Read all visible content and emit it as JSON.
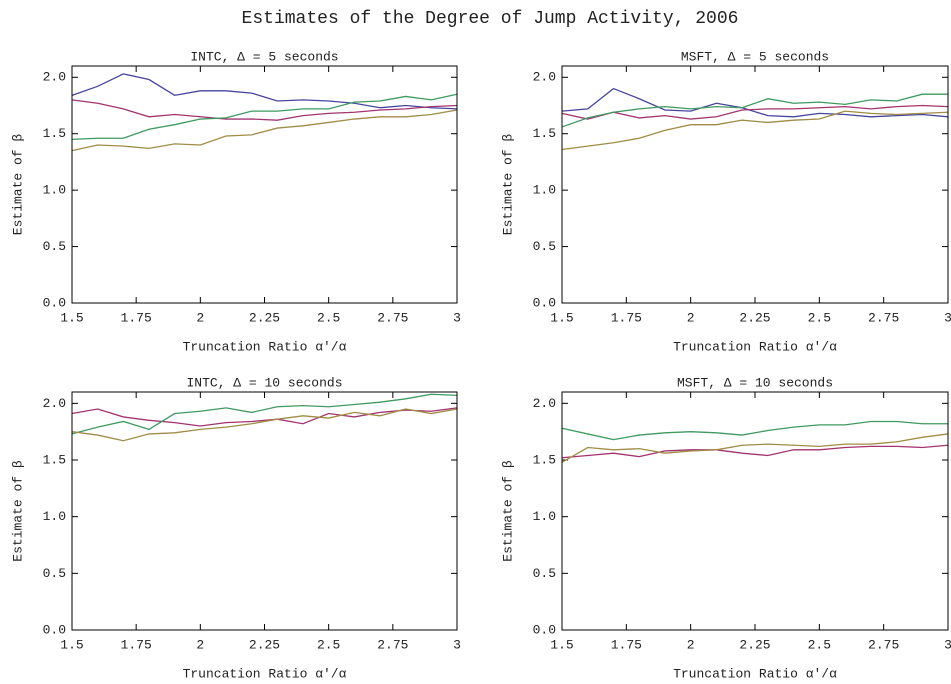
{
  "title": "Estimates of the Degree of Jump Activity, 2006",
  "chart_data": [
    {
      "type": "line",
      "title": "INTC, Δ = 5 seconds",
      "xlabel": "Truncation Ratio α'/α",
      "ylabel": "Estimate of β",
      "x": [
        1.5,
        1.6,
        1.7,
        1.8,
        1.9,
        2.0,
        2.1,
        2.2,
        2.3,
        2.4,
        2.5,
        2.6,
        2.7,
        2.8,
        2.9,
        3.0
      ],
      "xlim": [
        1.5,
        3
      ],
      "xticks": [
        1.5,
        1.75,
        2,
        2.25,
        2.5,
        2.75,
        3
      ],
      "ylim": [
        0,
        2.1
      ],
      "yticks": [
        {
          "value": 0,
          "label": "0.0"
        },
        0.5,
        {
          "value": 1,
          "label": "1.0"
        },
        1.5,
        {
          "value": 2,
          "label": "2.0"
        }
      ],
      "series": [
        {
          "color": "#45459e",
          "values": [
            1.84,
            1.92,
            2.03,
            1.98,
            1.84,
            1.88,
            1.88,
            1.86,
            1.79,
            1.8,
            1.79,
            1.77,
            1.73,
            1.75,
            1.73,
            1.72
          ]
        },
        {
          "color": "#a3336f",
          "values": [
            1.8,
            1.77,
            1.72,
            1.65,
            1.67,
            1.65,
            1.63,
            1.63,
            1.62,
            1.66,
            1.68,
            1.69,
            1.71,
            1.72,
            1.74,
            1.75
          ]
        },
        {
          "color": "#3f9a5f",
          "values": [
            1.45,
            1.46,
            1.46,
            1.54,
            1.58,
            1.63,
            1.64,
            1.7,
            1.7,
            1.72,
            1.72,
            1.78,
            1.79,
            1.83,
            1.8,
            1.85
          ]
        },
        {
          "color": "#a08c45",
          "values": [
            1.35,
            1.4,
            1.39,
            1.37,
            1.41,
            1.4,
            1.48,
            1.49,
            1.55,
            1.57,
            1.6,
            1.63,
            1.65,
            1.65,
            1.67,
            1.71
          ]
        }
      ]
    },
    {
      "type": "line",
      "title": "MSFT, Δ = 5 seconds",
      "xlabel": "Truncation Ratio α'/α",
      "ylabel": "Estimate of β",
      "x": [
        1.5,
        1.6,
        1.7,
        1.8,
        1.9,
        2.0,
        2.1,
        2.2,
        2.3,
        2.4,
        2.5,
        2.6,
        2.7,
        2.8,
        2.9,
        3.0
      ],
      "xlim": [
        1.5,
        3
      ],
      "xticks": [
        1.5,
        1.75,
        2,
        2.25,
        2.5,
        2.75,
        3
      ],
      "ylim": [
        0,
        2.1
      ],
      "yticks": [
        {
          "value": 0,
          "label": "0.0"
        },
        0.5,
        {
          "value": 1,
          "label": "1.0"
        },
        1.5,
        {
          "value": 2,
          "label": "2.0"
        }
      ],
      "series": [
        {
          "color": "#45459e",
          "values": [
            1.7,
            1.72,
            1.9,
            1.81,
            1.71,
            1.7,
            1.77,
            1.73,
            1.66,
            1.65,
            1.68,
            1.67,
            1.65,
            1.66,
            1.67,
            1.65
          ]
        },
        {
          "color": "#a3336f",
          "values": [
            1.68,
            1.63,
            1.69,
            1.64,
            1.66,
            1.63,
            1.65,
            1.71,
            1.72,
            1.72,
            1.73,
            1.74,
            1.72,
            1.74,
            1.75,
            1.74
          ]
        },
        {
          "color": "#3f9a5f",
          "values": [
            1.56,
            1.64,
            1.69,
            1.72,
            1.74,
            1.72,
            1.74,
            1.73,
            1.81,
            1.77,
            1.78,
            1.76,
            1.8,
            1.79,
            1.85,
            1.85
          ]
        },
        {
          "color": "#a08c45",
          "values": [
            1.36,
            1.39,
            1.42,
            1.46,
            1.53,
            1.58,
            1.58,
            1.62,
            1.6,
            1.62,
            1.63,
            1.7,
            1.68,
            1.67,
            1.68,
            1.69
          ]
        }
      ]
    },
    {
      "type": "line",
      "title": "INTC, Δ = 10 seconds",
      "xlabel": "Truncation Ratio α'/α",
      "ylabel": "Estimate of β",
      "x": [
        1.5,
        1.6,
        1.7,
        1.8,
        1.9,
        2.0,
        2.1,
        2.2,
        2.3,
        2.4,
        2.5,
        2.6,
        2.7,
        2.8,
        2.9,
        3.0
      ],
      "xlim": [
        1.5,
        3
      ],
      "xticks": [
        1.5,
        1.75,
        2,
        2.25,
        2.5,
        2.75,
        3
      ],
      "ylim": [
        0,
        2.1
      ],
      "yticks": [
        {
          "value": 0,
          "label": "0.0"
        },
        0.5,
        {
          "value": 1,
          "label": "1.0"
        },
        1.5,
        {
          "value": 2,
          "label": "2.0"
        }
      ],
      "series": [
        {
          "color": "#a3336f",
          "values": [
            1.91,
            1.95,
            1.88,
            1.85,
            1.83,
            1.8,
            1.83,
            1.84,
            1.86,
            1.82,
            1.91,
            1.88,
            1.92,
            1.94,
            1.93,
            1.96
          ]
        },
        {
          "color": "#3f9a5f",
          "values": [
            1.73,
            1.79,
            1.84,
            1.77,
            1.91,
            1.93,
            1.96,
            1.92,
            1.97,
            1.98,
            1.97,
            1.99,
            2.01,
            2.04,
            2.08,
            2.07
          ]
        },
        {
          "color": "#a08c45",
          "values": [
            1.75,
            1.72,
            1.67,
            1.73,
            1.74,
            1.77,
            1.79,
            1.82,
            1.86,
            1.89,
            1.87,
            1.92,
            1.89,
            1.95,
            1.91,
            1.95
          ]
        }
      ]
    },
    {
      "type": "line",
      "title": "MSFT, Δ = 10 seconds",
      "xlabel": "Truncation Ratio α'/α",
      "ylabel": "Estimate of β",
      "x": [
        1.5,
        1.6,
        1.7,
        1.8,
        1.9,
        2.0,
        2.1,
        2.2,
        2.3,
        2.4,
        2.5,
        2.6,
        2.7,
        2.8,
        2.9,
        3.0
      ],
      "xlim": [
        1.5,
        3
      ],
      "xticks": [
        1.5,
        1.75,
        2,
        2.25,
        2.5,
        2.75,
        3
      ],
      "ylim": [
        0,
        2.1
      ],
      "yticks": [
        {
          "value": 0,
          "label": "0.0"
        },
        0.5,
        {
          "value": 1,
          "label": "1.0"
        },
        1.5,
        {
          "value": 2,
          "label": "2.0"
        }
      ],
      "series": [
        {
          "color": "#3f9a5f",
          "values": [
            1.78,
            1.73,
            1.68,
            1.72,
            1.74,
            1.75,
            1.74,
            1.72,
            1.76,
            1.79,
            1.81,
            1.81,
            1.84,
            1.84,
            1.82,
            1.82
          ]
        },
        {
          "color": "#a3336f",
          "values": [
            1.52,
            1.54,
            1.56,
            1.53,
            1.58,
            1.59,
            1.59,
            1.56,
            1.54,
            1.59,
            1.59,
            1.61,
            1.62,
            1.62,
            1.61,
            1.63
          ]
        },
        {
          "color": "#a08c45",
          "values": [
            1.48,
            1.61,
            1.59,
            1.6,
            1.56,
            1.58,
            1.59,
            1.63,
            1.64,
            1.63,
            1.62,
            1.64,
            1.64,
            1.66,
            1.7,
            1.73
          ]
        }
      ]
    }
  ]
}
